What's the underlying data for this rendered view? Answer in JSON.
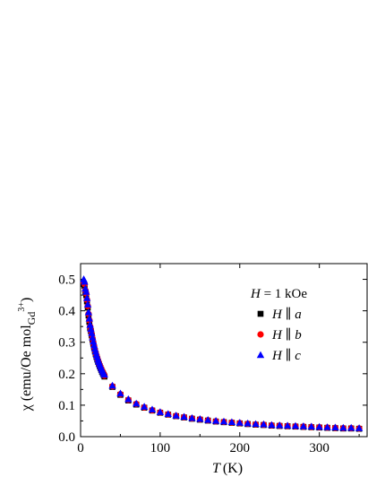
{
  "chart_data": {
    "type": "scatter",
    "title": "",
    "xlabel": {
      "symbol": "T",
      "unit": "(K)"
    },
    "ylabel": {
      "prefix": "χ (emu/Oe mol",
      "subscript": "Gd",
      "superscript": "3+",
      "suffix": ")"
    },
    "xlim": [
      0,
      360
    ],
    "ylim": [
      0,
      0.55
    ],
    "xticks": [
      0,
      100,
      200,
      300
    ],
    "xtick_labels": [
      "0",
      "100",
      "200",
      "300"
    ],
    "yticks": [
      0.0,
      0.1,
      0.2,
      0.3,
      0.4,
      0.5
    ],
    "ytick_labels": [
      "0.0",
      "0.1",
      "0.2",
      "0.3",
      "0.4",
      "0.5"
    ],
    "grid": false,
    "legend": {
      "position": "top-right",
      "header": {
        "symbol": "H",
        "text": " = 1 kOe"
      },
      "entries": [
        {
          "symbol": "H",
          "sep": " ∥ ",
          "axis": "a"
        },
        {
          "symbol": "H",
          "sep": " ∥ ",
          "axis": "b"
        },
        {
          "symbol": "H",
          "sep": " ∥ ",
          "axis": "c"
        }
      ]
    },
    "x": [
      4,
      5,
      6,
      7,
      8,
      9,
      10,
      11,
      12,
      13,
      14,
      15,
      16,
      17,
      18,
      19,
      20,
      21,
      22,
      23,
      24,
      25,
      26,
      27,
      28,
      29,
      30,
      40,
      50,
      60,
      70,
      80,
      90,
      100,
      110,
      120,
      130,
      140,
      150,
      160,
      170,
      180,
      190,
      200,
      210,
      220,
      230,
      240,
      250,
      260,
      270,
      280,
      290,
      300,
      310,
      320,
      330,
      340,
      350
    ],
    "series": [
      {
        "name": "H ∥ a",
        "marker": "square",
        "color": "#000000",
        "values": [
          0.485,
          0.48,
          0.46,
          0.45,
          0.43,
          0.41,
          0.385,
          0.365,
          0.345,
          0.335,
          0.322,
          0.308,
          0.295,
          0.283,
          0.272,
          0.263,
          0.254,
          0.246,
          0.238,
          0.231,
          0.224,
          0.218,
          0.212,
          0.206,
          0.201,
          0.196,
          0.191,
          0.158,
          0.133,
          0.115,
          0.102,
          0.092,
          0.083,
          0.076,
          0.07,
          0.065,
          0.061,
          0.057,
          0.054,
          0.051,
          0.048,
          0.046,
          0.044,
          0.042,
          0.04,
          0.038,
          0.037,
          0.035,
          0.034,
          0.033,
          0.032,
          0.031,
          0.03,
          0.029,
          0.028,
          0.027,
          0.026,
          0.026,
          0.025
        ]
      },
      {
        "name": "H ∥ b",
        "marker": "circle",
        "color": "#ff0000",
        "values": [
          0.49,
          0.485,
          0.465,
          0.455,
          0.435,
          0.415,
          0.39,
          0.37,
          0.35,
          0.338,
          0.325,
          0.311,
          0.298,
          0.286,
          0.275,
          0.266,
          0.257,
          0.249,
          0.241,
          0.234,
          0.227,
          0.221,
          0.215,
          0.209,
          0.204,
          0.199,
          0.194,
          0.16,
          0.135,
          0.117,
          0.104,
          0.093,
          0.084,
          0.077,
          0.071,
          0.066,
          0.062,
          0.058,
          0.055,
          0.052,
          0.049,
          0.047,
          0.045,
          0.043,
          0.041,
          0.039,
          0.038,
          0.036,
          0.035,
          0.034,
          0.033,
          0.032,
          0.031,
          0.03,
          0.029,
          0.028,
          0.027,
          0.027,
          0.026
        ]
      },
      {
        "name": "H ∥ c",
        "marker": "triangle",
        "color": "#0000ff",
        "values": [
          0.5,
          0.492,
          0.47,
          0.46,
          0.44,
          0.42,
          0.395,
          0.375,
          0.355,
          0.342,
          0.329,
          0.315,
          0.302,
          0.29,
          0.279,
          0.27,
          0.26,
          0.252,
          0.244,
          0.237,
          0.23,
          0.224,
          0.218,
          0.212,
          0.207,
          0.202,
          0.197,
          0.162,
          0.137,
          0.119,
          0.105,
          0.095,
          0.086,
          0.078,
          0.072,
          0.067,
          0.063,
          0.059,
          0.056,
          0.053,
          0.05,
          0.048,
          0.046,
          0.044,
          0.042,
          0.04,
          0.039,
          0.037,
          0.036,
          0.035,
          0.034,
          0.033,
          0.032,
          0.031,
          0.03,
          0.029,
          0.028,
          0.028,
          0.027
        ]
      }
    ]
  }
}
